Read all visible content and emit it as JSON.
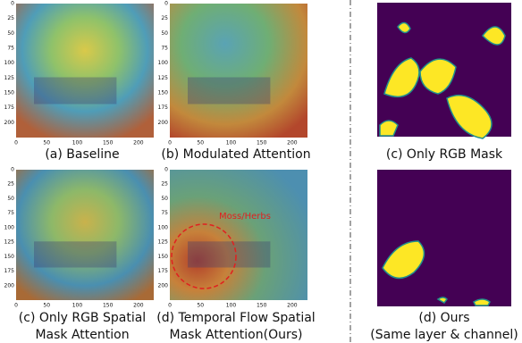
{
  "yticks": [
    0,
    25,
    50,
    75,
    100,
    125,
    150,
    175,
    200
  ],
  "xticks": [
    0,
    50,
    100,
    150,
    200
  ],
  "panels": [
    {
      "caption": [
        "(a) Baseline"
      ]
    },
    {
      "caption": [
        "(b) Modulated Attention"
      ]
    },
    {
      "caption": [
        "(c) Only RGB Spatial",
        "Mask Attention"
      ]
    },
    {
      "caption": [
        "(d) Temporal Flow Spatial",
        "Mask Attention(Ours)"
      ],
      "annotation": "Moss/Herbs"
    }
  ],
  "masks": [
    {
      "caption": [
        "(c) Only RGB Mask"
      ]
    },
    {
      "caption": [
        "(d) Ours",
        "(Same layer & channel)"
      ]
    }
  ]
}
